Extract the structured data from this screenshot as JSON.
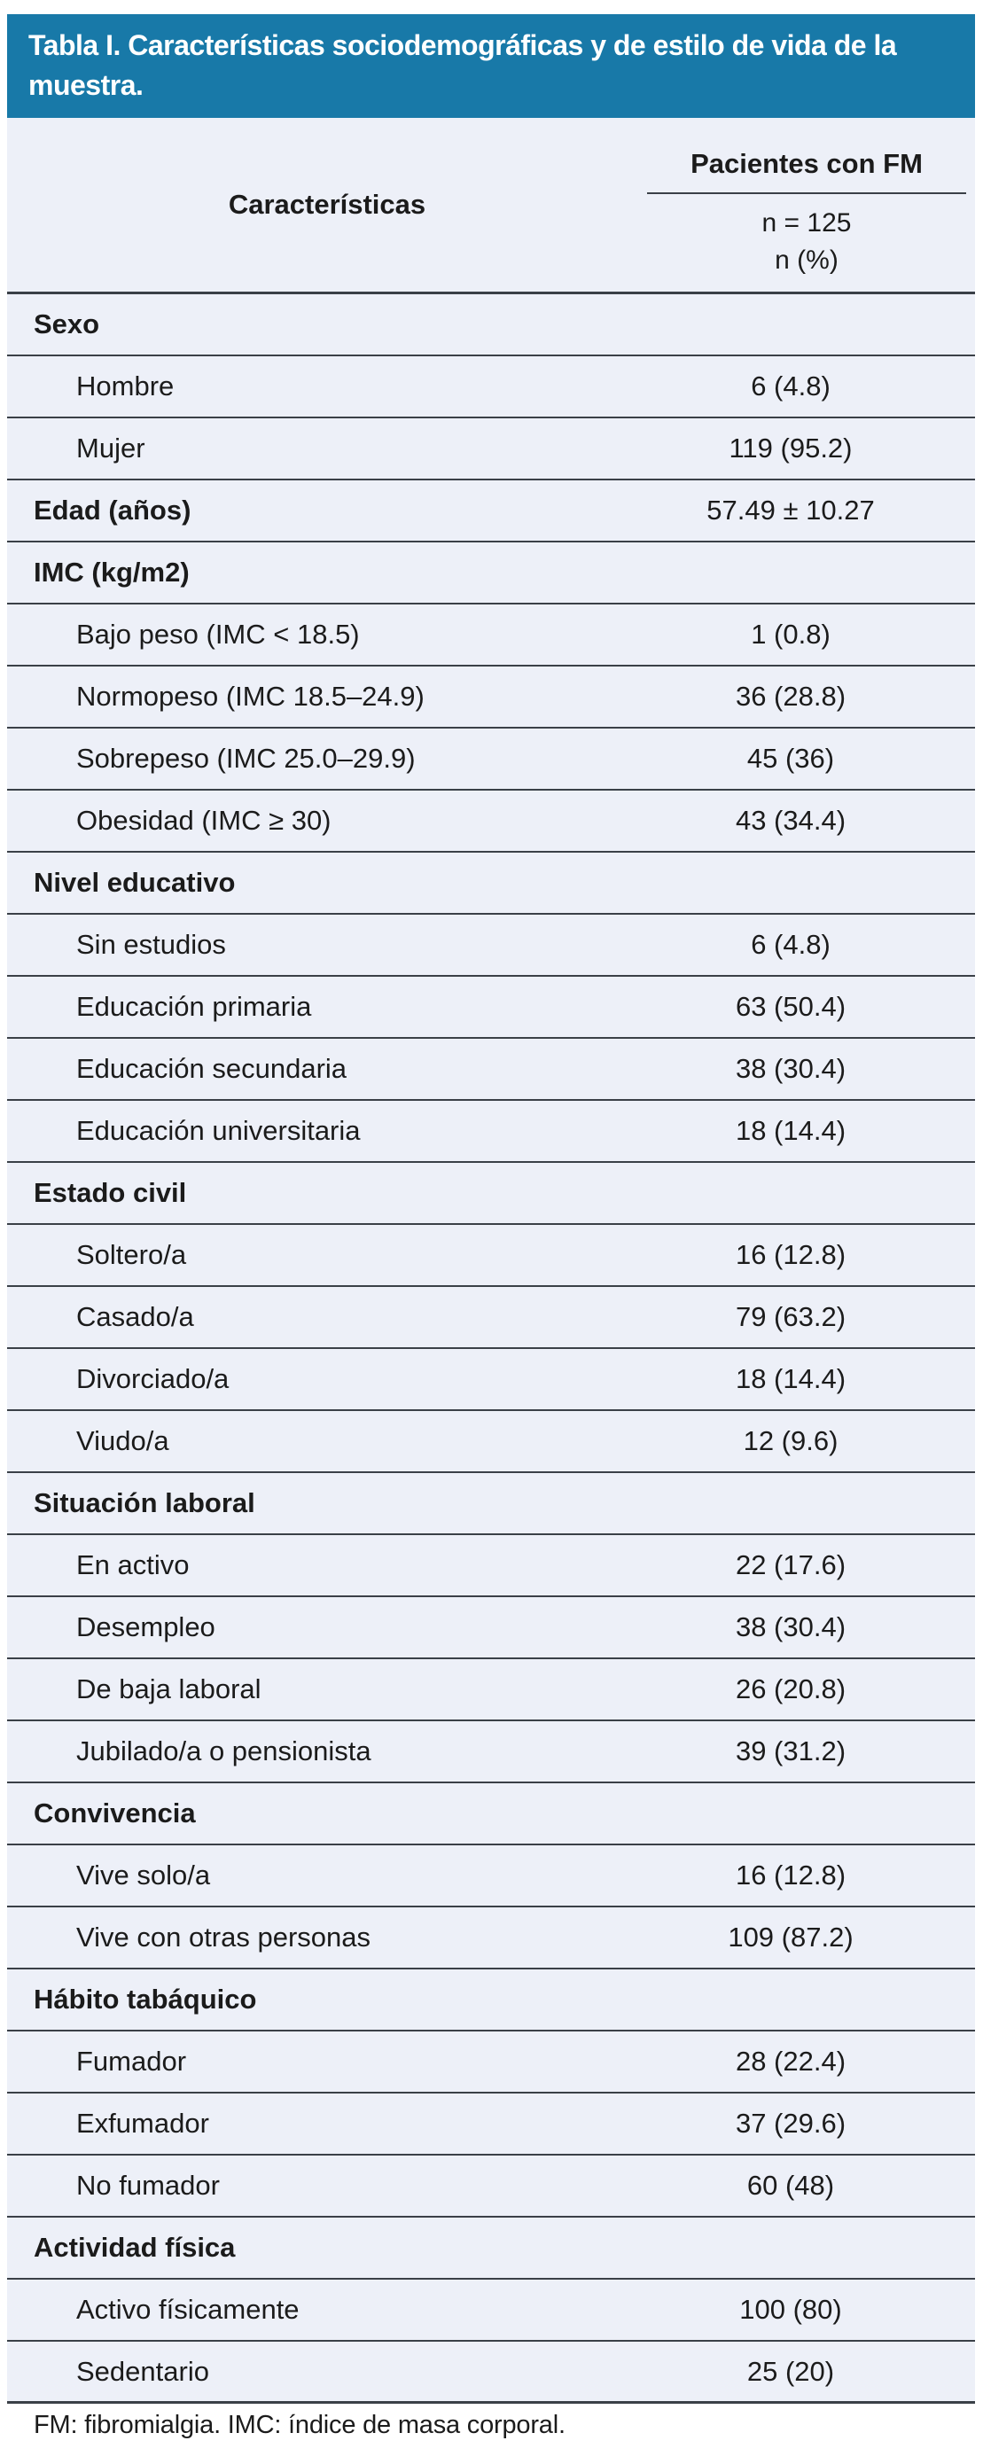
{
  "title": "Tabla I. Características sociodemográficas y de estilo de vida de la muestra.",
  "colors": {
    "title_bar_bg": "#1879a8",
    "table_bg": "#edf0f8",
    "rule_line": "#3a4047",
    "title_text": "#ffffff",
    "body_text": "#1b1b1b"
  },
  "table": {
    "col_characteristics_label": "Características",
    "col_group_label": "Pacientes con FM",
    "col_sub_n": "n = 125",
    "col_sub_unit": "n (%)",
    "rows": [
      {
        "label": "Sexo",
        "value": "",
        "section": true
      },
      {
        "label": "Hombre",
        "value": "6 (4.8)",
        "section": false
      },
      {
        "label": "Mujer",
        "value": "119 (95.2)",
        "section": false
      },
      {
        "label": "Edad (años)",
        "value": "57.49 ± 10.27",
        "section": true
      },
      {
        "label": "IMC (kg/m2)",
        "value": "",
        "section": true
      },
      {
        "label": "Bajo peso (IMC < 18.5)",
        "value": "1 (0.8)",
        "section": false
      },
      {
        "label": "Normopeso (IMC 18.5–24.9)",
        "value": "36 (28.8)",
        "section": false
      },
      {
        "label": "Sobrepeso (IMC 25.0–29.9)",
        "value": "45 (36)",
        "section": false
      },
      {
        "label": "Obesidad (IMC ≥ 30)",
        "value": "43 (34.4)",
        "section": false
      },
      {
        "label": "Nivel educativo",
        "value": "",
        "section": true
      },
      {
        "label": "Sin estudios",
        "value": "6 (4.8)",
        "section": false
      },
      {
        "label": "Educación primaria",
        "value": "63 (50.4)",
        "section": false
      },
      {
        "label": "Educación secundaria",
        "value": "38 (30.4)",
        "section": false
      },
      {
        "label": "Educación universitaria",
        "value": "18 (14.4)",
        "section": false
      },
      {
        "label": "Estado civil",
        "value": "",
        "section": true
      },
      {
        "label": "Soltero/a",
        "value": "16 (12.8)",
        "section": false
      },
      {
        "label": "Casado/a",
        "value": "79 (63.2)",
        "section": false
      },
      {
        "label": "Divorciado/a",
        "value": "18 (14.4)",
        "section": false
      },
      {
        "label": "Viudo/a",
        "value": "12 (9.6)",
        "section": false
      },
      {
        "label": "Situación laboral",
        "value": "",
        "section": true
      },
      {
        "label": "En activo",
        "value": "22 (17.6)",
        "section": false
      },
      {
        "label": "Desempleo",
        "value": "38 (30.4)",
        "section": false
      },
      {
        "label": "De baja laboral",
        "value": "26 (20.8)",
        "section": false
      },
      {
        "label": "Jubilado/a o pensionista",
        "value": "39 (31.2)",
        "section": false
      },
      {
        "label": "Convivencia",
        "value": "",
        "section": true
      },
      {
        "label": "Vive solo/a",
        "value": "16 (12.8)",
        "section": false
      },
      {
        "label": "Vive con otras personas",
        "value": "109 (87.2)",
        "section": false
      },
      {
        "label": "Hábito tabáquico",
        "value": "",
        "section": true
      },
      {
        "label": "Fumador",
        "value": "28 (22.4)",
        "section": false
      },
      {
        "label": "Exfumador",
        "value": "37 (29.6)",
        "section": false
      },
      {
        "label": "No fumador",
        "value": "60 (48)",
        "section": false
      },
      {
        "label": "Actividad física",
        "value": "",
        "section": true
      },
      {
        "label": "Activo físicamente",
        "value": "100 (80)",
        "section": false
      },
      {
        "label": "Sedentario",
        "value": "25 (20)",
        "section": false
      }
    ]
  },
  "footnote": "FM: fibromialgia. IMC: índice de masa corporal."
}
